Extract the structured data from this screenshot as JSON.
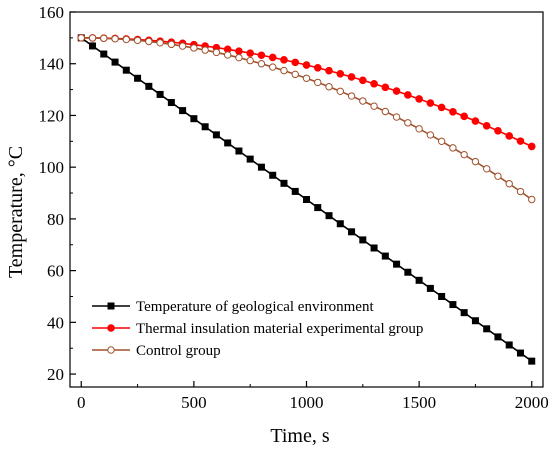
{
  "chart_data": {
    "type": "line",
    "xlabel": "Time, s",
    "ylabel": "Temperature, °C",
    "xlim": [
      -50,
      2050
    ],
    "ylim": [
      15,
      160
    ],
    "xticks": [
      0,
      500,
      1000,
      1500,
      2000
    ],
    "yticks": [
      20,
      40,
      60,
      80,
      100,
      120,
      140,
      160
    ],
    "legend_position": "bottom-left",
    "grid": false,
    "series": [
      {
        "name": "Temperature of geological environment",
        "color": "#000000",
        "marker": "square-filled",
        "x_start": 0,
        "x_end": 2000,
        "x_step": 50,
        "y_start": 150,
        "y_end": 25,
        "trend": "linear"
      },
      {
        "name": "Thermal insulation material experimental group",
        "color": "#ff0000",
        "marker": "circle-filled",
        "x_start": 0,
        "x_end": 2000,
        "x_step": 50,
        "y_start": 150,
        "y_end": 108,
        "trend": "concave-down quadratic"
      },
      {
        "name": "Control group",
        "color": "#a0522d",
        "marker": "circle-open",
        "x_start": 0,
        "x_end": 2000,
        "x_step": 50,
        "y_start": 150,
        "y_end": 87.5,
        "trend": "concave-down quadratic"
      }
    ]
  }
}
